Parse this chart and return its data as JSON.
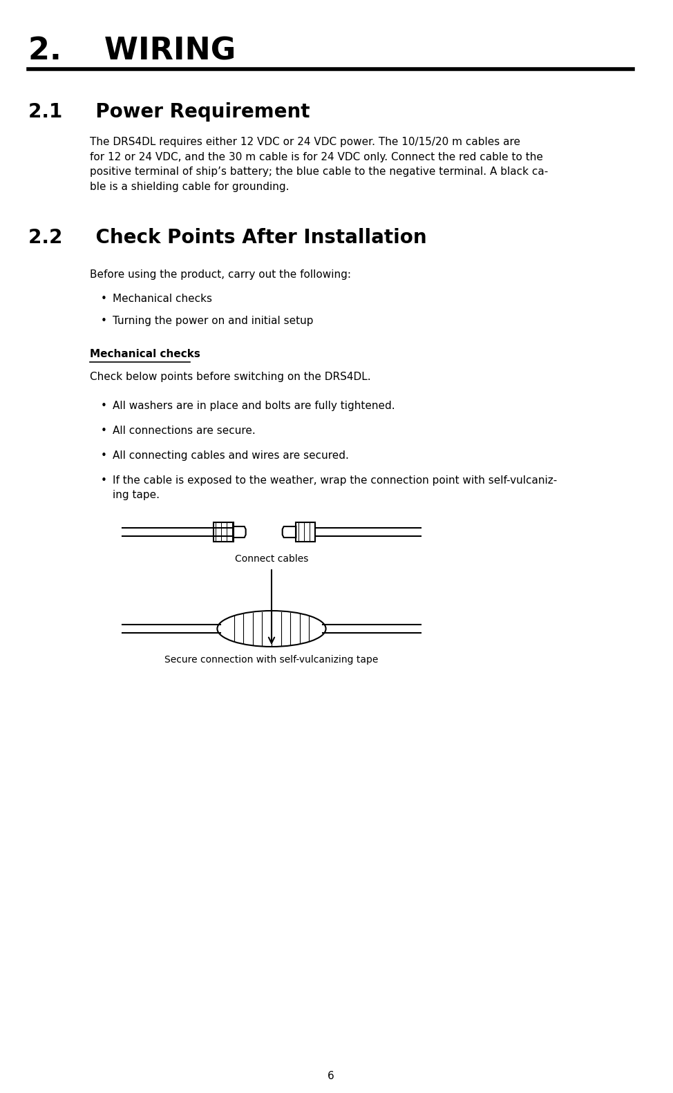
{
  "bg_color": "#ffffff",
  "page_number": "6",
  "chapter_title": "2.    WIRING",
  "section_21_title": "2.1     Power Requirement",
  "section_21_body": "The DRS4DL requires either 12 VDC or 24 VDC power. The 10/15/20 m cables are\nfor 12 or 24 VDC, and the 30 m cable is for 24 VDC only. Connect the red cable to the\npositive terminal of ship’s battery; the blue cable to the negative terminal. A black ca-\nble is a shielding cable for grounding.",
  "section_22_title": "2.2     Check Points After Installation",
  "section_22_intro": "Before using the product, carry out the following:",
  "section_22_bullets1": [
    "Mechanical checks",
    "Turning the power on and initial setup"
  ],
  "mech_checks_title": "Mechanical checks",
  "mech_checks_intro": "Check below points before switching on the DRS4DL.",
  "mech_checks_bullets": [
    "All washers are in place and bolts are fully tightened.",
    "All connections are secure.",
    "All connecting cables and wires are secured.",
    "If the cable is exposed to the weather, wrap the connection point with self-vulcaniz-\ning tape."
  ],
  "label_connect": "Connect cables",
  "label_secure": "Secure connection with self-vulcanizing tape"
}
